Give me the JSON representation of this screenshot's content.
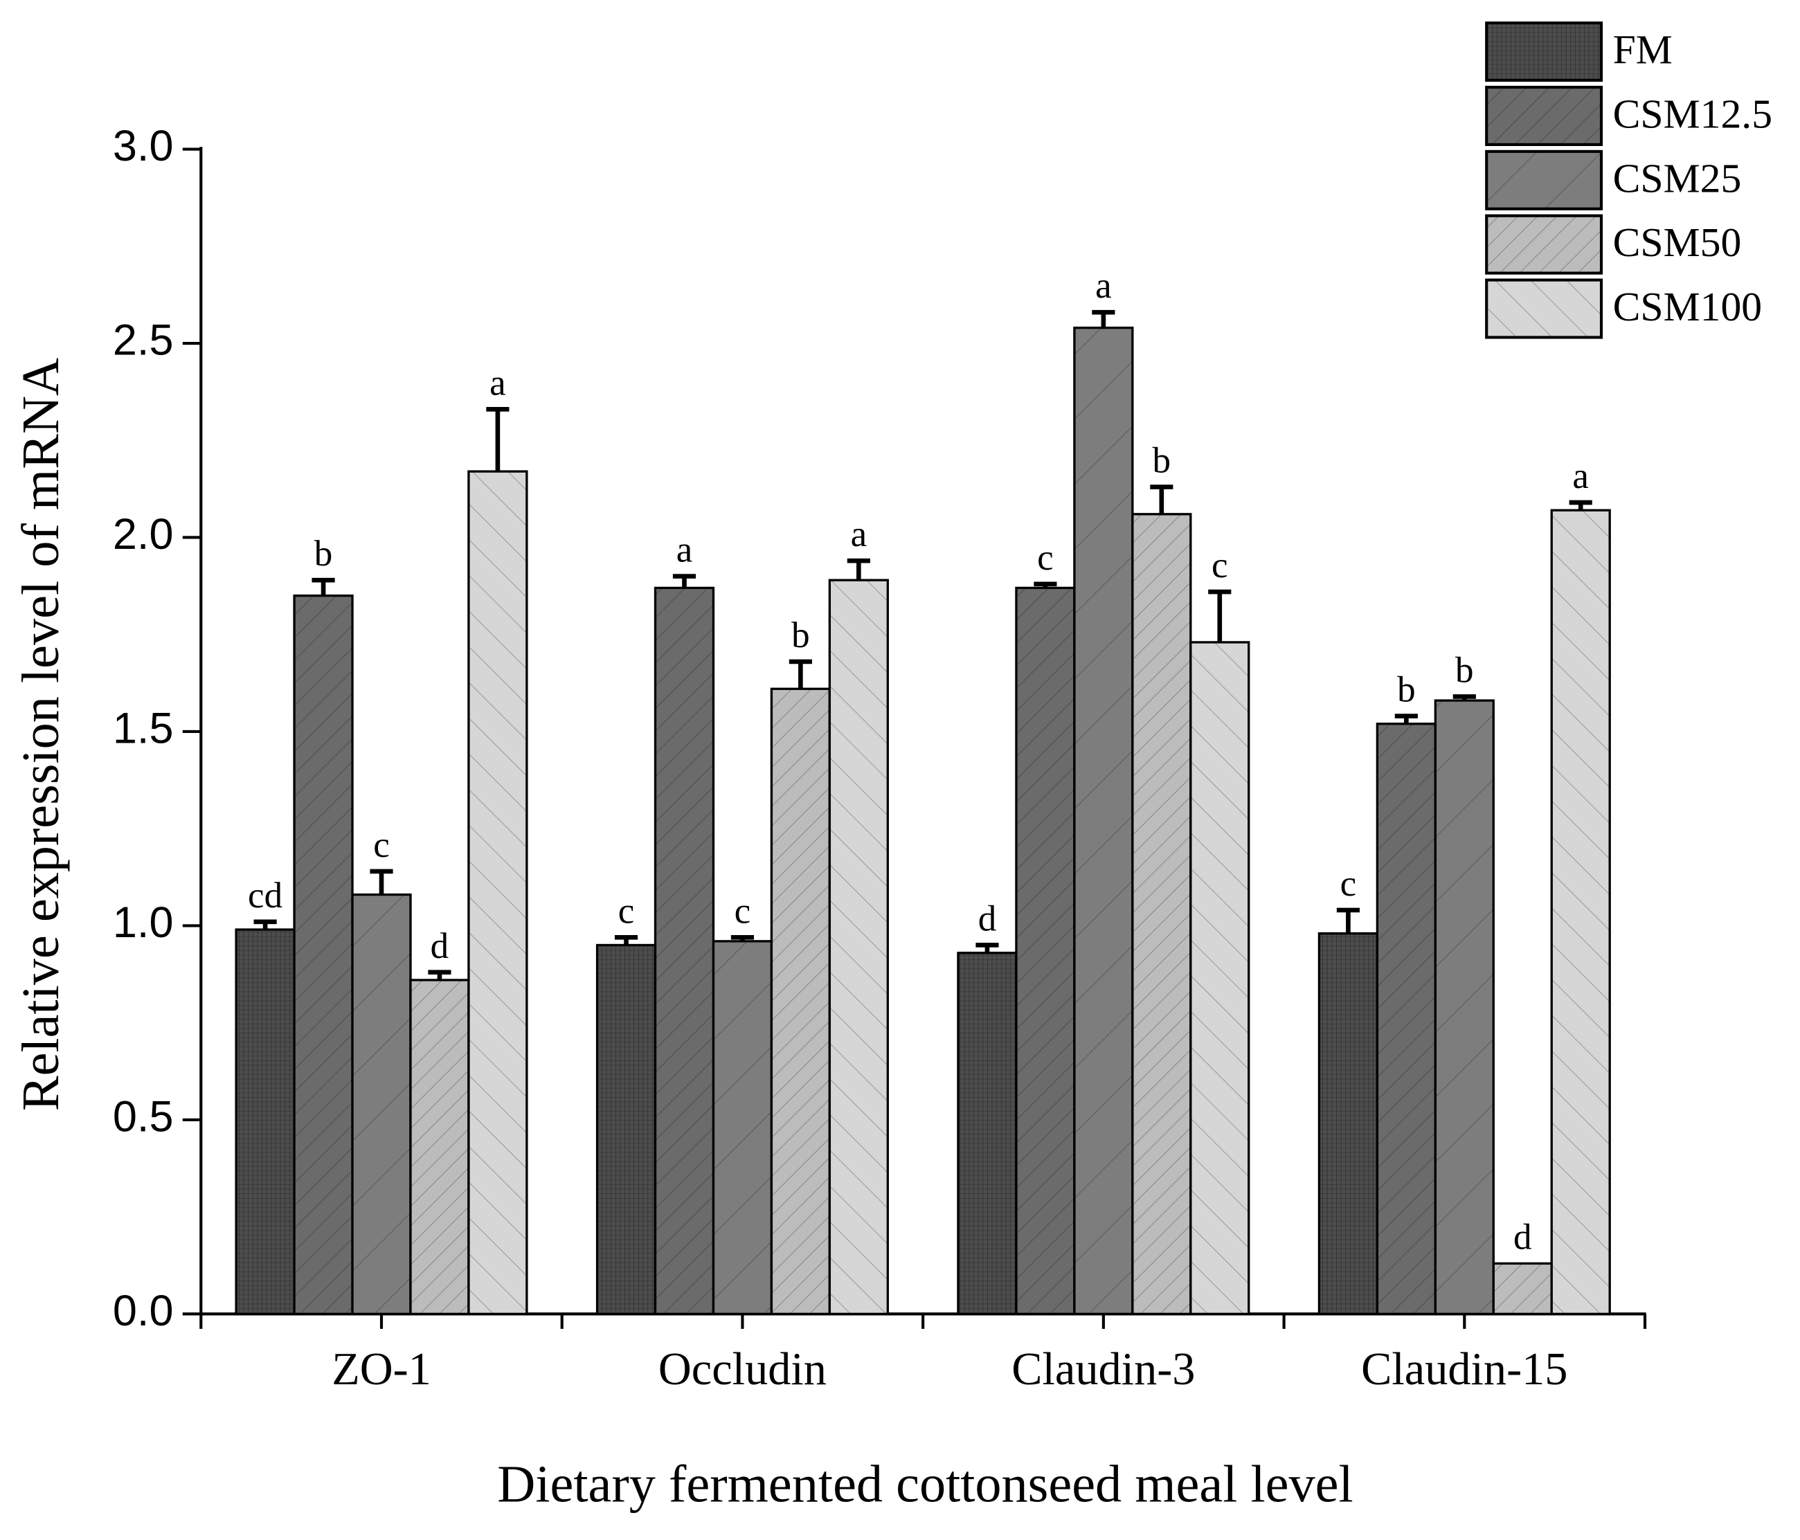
{
  "chart_data": {
    "type": "bar",
    "x_label": "Dietary fermented cottonseed meal level",
    "y_label": "Relative expression level of mRNA",
    "categories": [
      "ZO-1",
      "Occludin",
      "Claudin-3",
      "Claudin-15"
    ],
    "ylim": [
      0,
      3
    ],
    "yticks": [
      {
        "value": 0,
        "label": "0.0"
      },
      0.5,
      {
        "value": 1,
        "label": "1.0"
      },
      1.5,
      {
        "value": 2,
        "label": "2.0"
      },
      2.5,
      {
        "value": 3,
        "label": "3.0"
      }
    ],
    "legend": "top-right",
    "series": [
      {
        "name": "FM",
        "color": "#4d4d4d",
        "values": [
          0.99,
          0.95,
          0.93,
          0.98
        ],
        "errors": [
          0.02,
          0.02,
          0.02,
          0.06
        ],
        "letters": [
          "cd",
          "c",
          "d",
          "c"
        ]
      },
      {
        "name": "CSM12.5",
        "color": "#6b6b6b",
        "values": [
          1.85,
          1.87,
          1.87,
          1.52
        ],
        "errors": [
          0.04,
          0.03,
          0.01,
          0.02
        ],
        "letters": [
          "b",
          "a",
          "c",
          "b"
        ]
      },
      {
        "name": "CSM25",
        "color": "#7d7d7d",
        "values": [
          1.08,
          0.96,
          2.54,
          1.58
        ],
        "errors": [
          0.06,
          0.01,
          0.04,
          0.01
        ],
        "letters": [
          "c",
          "c",
          "a",
          "b"
        ]
      },
      {
        "name": "CSM50",
        "color": "#bcbcbc",
        "values": [
          0.86,
          1.61,
          2.06,
          0.13
        ],
        "errors": [
          0.02,
          0.07,
          0.07,
          0
        ],
        "letters": [
          "d",
          "b",
          "b",
          "d"
        ]
      },
      {
        "name": "CSM100",
        "color": "#d6d6d6",
        "values": [
          2.17,
          1.89,
          1.73,
          2.07
        ],
        "errors": [
          0.16,
          0.05,
          0.13,
          0.02
        ],
        "letters": [
          "a",
          "a",
          "c",
          "a"
        ]
      }
    ]
  }
}
